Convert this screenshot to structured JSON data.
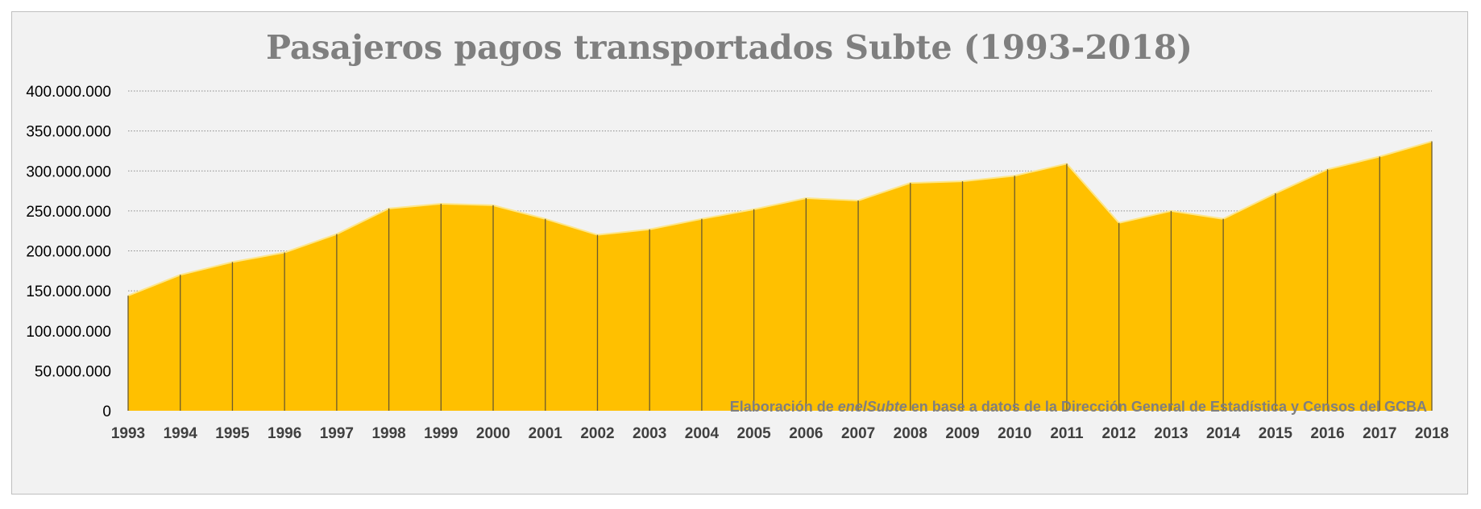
{
  "chart_data": {
    "type": "area",
    "title": "Pasajeros pagos transportados Subte (1993-2018)",
    "xlabel": "",
    "ylabel": "",
    "ylim": [
      0,
      400000000
    ],
    "yticks": [
      {
        "value": 0,
        "label": "0"
      },
      {
        "value": 50000000,
        "label": "50.000.000"
      },
      {
        "value": 100000000,
        "label": "100.000.000"
      },
      {
        "value": 150000000,
        "label": "150.000.000"
      },
      {
        "value": 200000000,
        "label": "200.000.000"
      },
      {
        "value": 250000000,
        "label": "250.000.000"
      },
      {
        "value": 300000000,
        "label": "300.000.000"
      },
      {
        "value": 350000000,
        "label": "350.000.000"
      },
      {
        "value": 400000000,
        "label": "400.000.000"
      }
    ],
    "categories": [
      "1993",
      "1994",
      "1995",
      "1996",
      "1997",
      "1998",
      "1999",
      "2000",
      "2001",
      "2002",
      "2003",
      "2004",
      "2005",
      "2006",
      "2007",
      "2008",
      "2009",
      "2010",
      "2011",
      "2012",
      "2013",
      "2014",
      "2015",
      "2016",
      "2017",
      "2018"
    ],
    "series": [
      {
        "name": "Pasajeros pagos",
        "values": [
          144000000,
          170000000,
          186000000,
          198000000,
          221000000,
          253000000,
          259000000,
          257000000,
          240000000,
          220000000,
          227000000,
          240000000,
          252000000,
          266000000,
          263000000,
          285000000,
          287000000,
          294000000,
          309000000,
          235000000,
          250000000,
          240000000,
          272000000,
          302000000,
          318000000,
          337000000
        ]
      }
    ],
    "grid": "horizontal-dotted",
    "legend": "none",
    "colors": {
      "fill": "#ffc000",
      "fill_edge": "#fde68a",
      "drop_lines": "#6b5a2e",
      "gridlines": "#8c8c8c",
      "background": "#f2f2f2"
    }
  },
  "source": {
    "prefix": "Elaboración de ",
    "brand": "enelSubte",
    "suffix": " en base a datos de la Dirección General de Estadística y Censos del GCBA"
  }
}
